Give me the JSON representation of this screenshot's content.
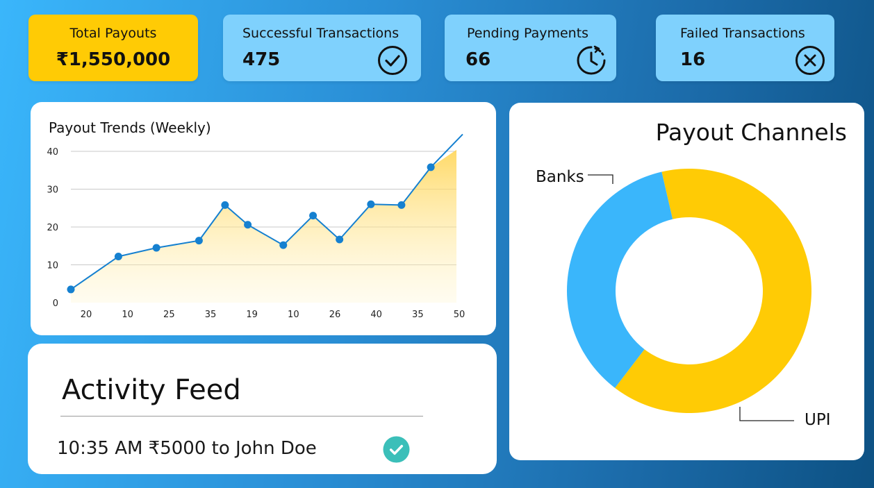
{
  "stats": {
    "total": {
      "label": "Total Payouts",
      "value": "₹1,550,000"
    },
    "success": {
      "label": "Successful Transactions",
      "value": "475",
      "icon": "check-circle-icon"
    },
    "pending": {
      "label": "Pending Payments",
      "value": "66",
      "icon": "clock-refresh-icon"
    },
    "failed": {
      "label": "Failed Transactions",
      "value": "16",
      "icon": "x-circle-icon"
    }
  },
  "trend": {
    "title": "Payout Trends (Weekly)"
  },
  "channels": {
    "title": "Payout Channels"
  },
  "feed": {
    "title": "Activity Feed",
    "items": [
      {
        "text": "10:35 AM ₹5000 to John Doe",
        "status_icon": "check-circle-icon"
      }
    ]
  },
  "colors": {
    "accent_yellow": "#ffcb05",
    "accent_blue": "#3ab6fb",
    "line_blue": "#1580d0",
    "success_teal": "#3bbfb9"
  },
  "chart_data": [
    {
      "type": "area",
      "title": "Payout Trends (Weekly)",
      "xlabel": "",
      "ylabel": "",
      "ylim": [
        0,
        40
      ],
      "yticks": [
        "0",
        "10",
        "20",
        "30",
        "40"
      ],
      "xtick_labels": [
        "20",
        "10",
        "25",
        "35",
        "19",
        "10",
        "26",
        "40",
        "35",
        "50"
      ],
      "grid": true,
      "points_x": [
        0,
        1.15,
        2.07,
        3.1,
        3.73,
        4.28,
        5.14,
        5.86,
        6.5,
        7.26,
        8.0,
        8.71
      ],
      "values": [
        3.5,
        12.2,
        14.5,
        16.4,
        25.8,
        20.6,
        15.2,
        23.0,
        16.7,
        26.0,
        25.8,
        35.8
      ],
      "end_value": 44.5,
      "show_markers": true
    },
    {
      "type": "pie",
      "title": "Payout Channels",
      "donut": true,
      "slices": [
        {
          "label": "UPI",
          "value": 64
        },
        {
          "label": "Banks",
          "value": 36
        }
      ]
    }
  ]
}
